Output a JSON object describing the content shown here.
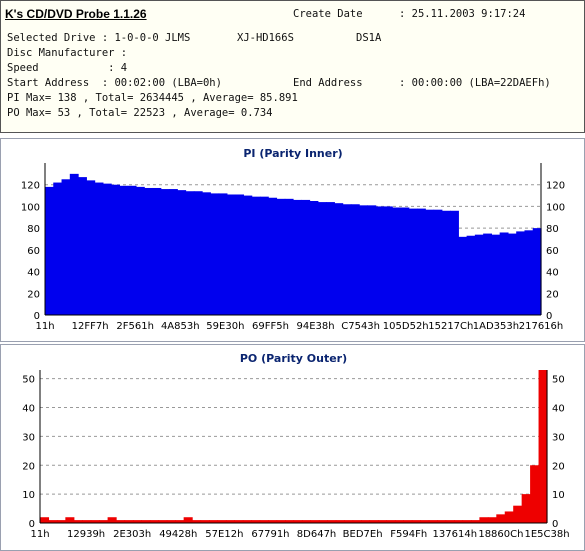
{
  "app": {
    "title": "K's CD/DVD Probe 1.1.26"
  },
  "info": {
    "create_date_label": "Create Date",
    "create_date_value": ": 25.11.2003 9:17:24",
    "selected_drive": "Selected Drive : 1-0-0-0 JLMS",
    "drive_model": "XJ-HD166S",
    "drive_fw": "DS1A",
    "disc_manufacturer": "Disc Manufacturer :",
    "speed": "Speed           : 4",
    "start_address": "Start Address  : 00:02:00 (LBA=0h)",
    "end_address_label": "End Address",
    "end_address_value": ": 00:00:00 (LBA=22DAEFh)",
    "pi_summary": "PI Max= 138 , Total= 2634445 , Average= 85.891",
    "po_summary": "PO Max= 53 , Total= 22523 , Average= 0.734"
  },
  "colors": {
    "pi_fill": "#0000ee",
    "po_fill": "#ee0000",
    "title": "#0a2470"
  },
  "chart_data": [
    {
      "type": "area",
      "title": "PI (Parity Inner)",
      "xlabel": "",
      "ylabel": "",
      "ylim": [
        0,
        140
      ],
      "y_ticks": [
        0,
        20,
        40,
        60,
        80,
        100,
        120
      ],
      "x_tick_labels": [
        "11h",
        "12FF7h",
        "2F561h",
        "4A853h",
        "59E30h",
        "69FF5h",
        "94E38h",
        "C7543h",
        "105D52h",
        "15217Ch",
        "1AD353h",
        "217616h"
      ],
      "grid": true,
      "series": [
        {
          "values": [
            118,
            122,
            125,
            130,
            127,
            124,
            122,
            121,
            120,
            119,
            119,
            118,
            117,
            117,
            116,
            116,
            115,
            114,
            114,
            113,
            112,
            112,
            111,
            111,
            110,
            109,
            109,
            108,
            107,
            107,
            106,
            106,
            105,
            104,
            104,
            103,
            102,
            102,
            101,
            101,
            100,
            100,
            99,
            99,
            98,
            98,
            97,
            97,
            96,
            96,
            72,
            73,
            74,
            75,
            74,
            76,
            75,
            77,
            78,
            80
          ]
        }
      ]
    },
    {
      "type": "area",
      "title": "PO (Parity Outer)",
      "xlabel": "",
      "ylabel": "",
      "ylim": [
        0,
        53
      ],
      "y_ticks": [
        0,
        10,
        20,
        30,
        40,
        50
      ],
      "x_tick_labels": [
        "11h",
        "12939h",
        "2E303h",
        "49428h",
        "57E12h",
        "67791h",
        "8D647h",
        "BED7Eh",
        "F594Fh",
        "137614h",
        "18860Ch",
        "1E5C38h"
      ],
      "grid": true,
      "series": [
        {
          "values": [
            2,
            1,
            1,
            2,
            1,
            1,
            1,
            1,
            2,
            1,
            1,
            1,
            1,
            1,
            1,
            1,
            1,
            2,
            1,
            1,
            1,
            1,
            1,
            1,
            1,
            1,
            1,
            1,
            1,
            1,
            1,
            1,
            1,
            1,
            1,
            1,
            1,
            1,
            1,
            1,
            1,
            1,
            1,
            1,
            1,
            1,
            1,
            1,
            1,
            1,
            1,
            1,
            2,
            2,
            3,
            4,
            6,
            10,
            20,
            53
          ]
        }
      ]
    }
  ]
}
